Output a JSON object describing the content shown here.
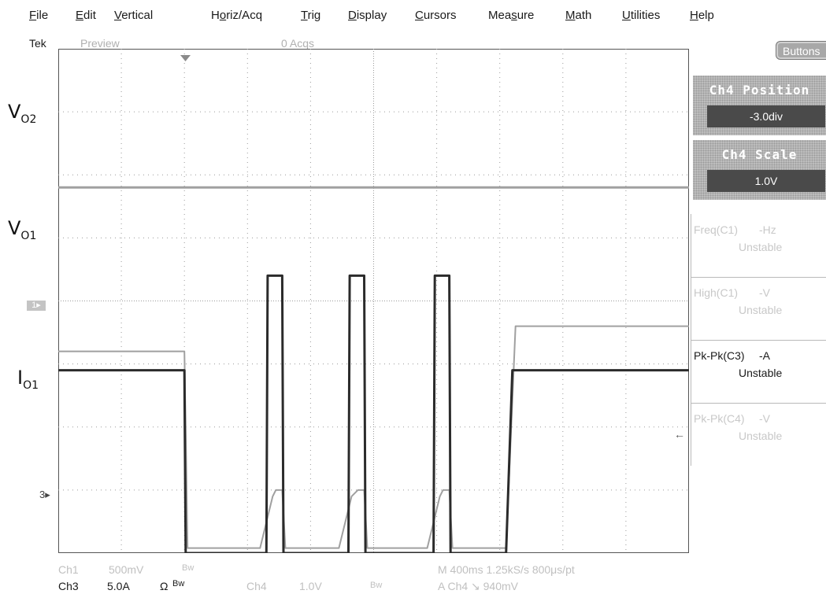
{
  "menu": [
    {
      "pre": "",
      "ul": "F",
      "post": "ile"
    },
    {
      "pre": "",
      "ul": "E",
      "post": "dit"
    },
    {
      "pre": "",
      "ul": "V",
      "post": "ertical"
    },
    {
      "pre": "H",
      "ul": "o",
      "post": "riz/Acq"
    },
    {
      "pre": "",
      "ul": "T",
      "post": "rig"
    },
    {
      "pre": "",
      "ul": "D",
      "post": "isplay"
    },
    {
      "pre": "",
      "ul": "C",
      "post": "ursors"
    },
    {
      "pre": "Mea",
      "ul": "s",
      "post": "ure"
    },
    {
      "pre": "",
      "ul": "M",
      "post": "ath"
    },
    {
      "pre": "",
      "ul": "U",
      "post": "tilities"
    },
    {
      "pre": "",
      "ul": "H",
      "post": "elp"
    }
  ],
  "status": {
    "brand": "Tek",
    "mode": "Preview",
    "acqs": "0 Acqs"
  },
  "side_labels": {
    "v02": {
      "main": "V",
      "sub": "O2"
    },
    "v01": {
      "main": "V",
      "sub": "O1"
    },
    "i01": {
      "main": "I",
      "sub": "O1"
    }
  },
  "buttons_label": "Buttons",
  "controls": [
    {
      "title": "Ch4 Position",
      "value": "-3.0div"
    },
    {
      "title": "Ch4 Scale",
      "value": "1.0V"
    }
  ],
  "measurements": [
    {
      "name": "Freq(C1)",
      "value": "-Hz",
      "status": "Unstable",
      "active": false
    },
    {
      "name": "High(C1)",
      "value": "-V",
      "status": "Unstable",
      "active": false
    },
    {
      "name": "Pk-Pk(C3)",
      "value": "-A",
      "status": "Unstable",
      "active": true
    },
    {
      "name": "Pk-Pk(C4)",
      "value": "-V",
      "status": "Unstable",
      "active": false
    }
  ],
  "markers": {
    "ch1": "1",
    "ch3": "3",
    "right": "←"
  },
  "channel_readouts": {
    "ch1": {
      "label": "Ch1",
      "scale": "500mV",
      "bw": "Bw"
    },
    "ch3": {
      "label": "Ch3",
      "scale": "5.0A",
      "ohm": "Ω",
      "bw": "Bw"
    },
    "ch4": {
      "label": "Ch4",
      "scale": "1.0V",
      "bw": "Bw"
    },
    "timebase": "M 400ms 1.25kS/s  800μs/pt",
    "trigger": "A  Ch4  ↘  940mV"
  },
  "colors": {
    "grid": "#9a9a9a",
    "trace_dark": "#2b2b2b",
    "trace_light": "#a0a0a0"
  },
  "chart_data": {
    "type": "line",
    "x_divisions": 10,
    "y_divisions": 8,
    "series": [
      {
        "name": "",
        "x": [
          0,
          2,
          2.001,
          8,
          8.001,
          10
        ],
        "y": [
          5.8,
          5.8,
          5.8,
          5.8,
          5.8,
          5.8
        ]
      },
      {
        "name": "",
        "x": [
          0,
          2,
          2.05,
          3.2,
          3.4,
          3.45,
          3.55,
          3.6,
          4.45,
          4.65,
          4.75,
          4.85,
          4.9,
          5.85,
          6.05,
          6.1,
          6.2,
          6.25,
          7.1,
          7.25,
          10
        ],
        "y": [
          3.2,
          3.2,
          0.08,
          0.08,
          0.9,
          1.0,
          1.0,
          0.08,
          0.08,
          0.9,
          1.0,
          1.0,
          0.08,
          0.08,
          0.9,
          1.0,
          1.0,
          0.08,
          0.08,
          3.6,
          3.6
        ]
      },
      {
        "name": "",
        "x": [
          0,
          2,
          2.02,
          3.3,
          3.32,
          3.45,
          3.47,
          3.55,
          3.57,
          4.6,
          4.62,
          4.75,
          4.77,
          4.85,
          4.87,
          5.95,
          5.97,
          6.1,
          6.12,
          6.2,
          6.22,
          7.1,
          7.2,
          10
        ],
        "y": [
          2.9,
          2.9,
          0.0,
          0.0,
          4.4,
          4.4,
          4.4,
          4.4,
          0.0,
          0.0,
          4.4,
          4.4,
          4.4,
          4.4,
          0.0,
          0.0,
          4.4,
          4.4,
          4.4,
          4.4,
          0.0,
          0.0,
          2.9,
          2.9
        ]
      }
    ]
  }
}
